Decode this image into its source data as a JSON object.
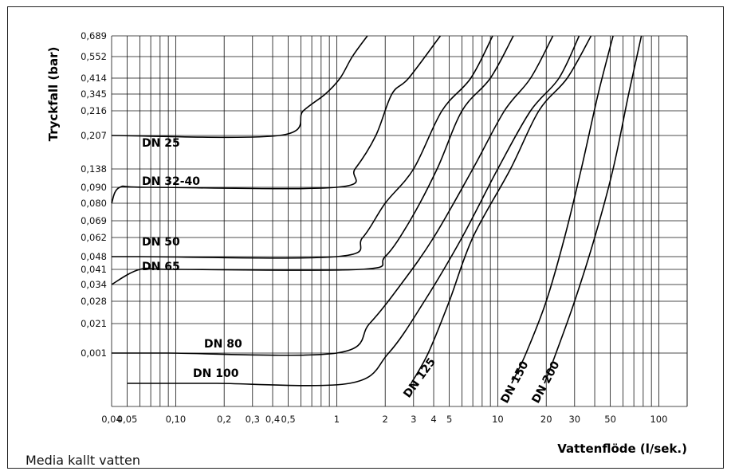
{
  "chart_data": {
    "type": "line",
    "title": "",
    "xlabel": "Vattenflöde (l/sek.)",
    "ylabel": "Tryckfall (bar)",
    "caption": "Media kallt vatten",
    "x_scale": "log",
    "xlim": [
      0.04,
      150
    ],
    "x_ticks": [
      {
        "v": 0.04,
        "label": "0,04"
      },
      {
        "v": 0.05,
        "label": "0,05"
      },
      {
        "v": 0.1,
        "label": "0,10"
      },
      {
        "v": 0.2,
        "label": "0,2"
      },
      {
        "v": 0.3,
        "label": "0,3"
      },
      {
        "v": 0.4,
        "label": "0,4"
      },
      {
        "v": 0.5,
        "label": "0,5"
      },
      {
        "v": 1,
        "label": "1"
      },
      {
        "v": 2,
        "label": "2"
      },
      {
        "v": 3,
        "label": "3"
      },
      {
        "v": 4,
        "label": "4"
      },
      {
        "v": 5,
        "label": "5"
      },
      {
        "v": 10,
        "label": "10"
      },
      {
        "v": 20,
        "label": "20"
      },
      {
        "v": 30,
        "label": "30"
      },
      {
        "v": 50,
        "label": "50"
      },
      {
        "v": 100,
        "label": "100"
      }
    ],
    "x_minor": [
      0.06,
      0.07,
      0.08,
      0.09,
      0.6,
      0.7,
      0.8,
      0.9,
      6,
      7,
      8,
      9,
      40,
      60,
      70,
      80,
      90,
      150
    ],
    "y_ticks": [
      "0,689",
      "0,552",
      "0,414",
      "0,345",
      "0,216",
      "0,207",
      "0,138",
      "0,090",
      "0,080",
      "0,069",
      "0,062",
      "0,048",
      "0,041",
      "0,034",
      "0,028",
      "0,021",
      "0,001",
      ""
    ],
    "grid": true,
    "series": [
      {
        "name": "DN 25",
        "points": [
          [
            0.04,
            0.207
          ],
          [
            0.44,
            0.207
          ],
          [
            0.62,
            0.216
          ],
          [
            0.85,
            0.345
          ],
          [
            1.05,
            0.414
          ],
          [
            1.25,
            0.552
          ],
          [
            1.55,
            0.689
          ]
        ]
      },
      {
        "name": "DN 32-40",
        "points": [
          [
            0.04,
            0.08
          ],
          [
            0.045,
            0.09
          ],
          [
            0.07,
            0.09
          ],
          [
            1.0,
            0.09
          ],
          [
            1.3,
            0.138
          ],
          [
            1.75,
            0.207
          ],
          [
            2.2,
            0.345
          ],
          [
            2.8,
            0.414
          ],
          [
            4.4,
            0.689
          ]
        ]
      },
      {
        "name": "DN 50",
        "points": [
          [
            0.04,
            0.048
          ],
          [
            0.06,
            0.048
          ],
          [
            1.0,
            0.048
          ],
          [
            1.45,
            0.062
          ],
          [
            2.0,
            0.08
          ],
          [
            3.0,
            0.138
          ],
          [
            4.5,
            0.216
          ],
          [
            6.8,
            0.414
          ],
          [
            9.3,
            0.689
          ]
        ]
      },
      {
        "name": "DN 65",
        "points": [
          [
            0.04,
            0.034
          ],
          [
            0.06,
            0.041
          ],
          [
            0.1,
            0.041
          ],
          [
            1.4,
            0.041
          ],
          [
            2.0,
            0.048
          ],
          [
            2.85,
            0.069
          ],
          [
            4.2,
            0.138
          ],
          [
            6.0,
            0.216
          ],
          [
            9.0,
            0.414
          ],
          [
            12.5,
            0.689
          ]
        ]
      },
      {
        "name": "DN 80",
        "points": [
          [
            0.04,
            0.001
          ],
          [
            0.06,
            0.001
          ],
          [
            0.09,
            0.001
          ],
          [
            1.0,
            0.001
          ],
          [
            1.6,
            0.021
          ],
          [
            2.5,
            0.034
          ],
          [
            4.0,
            0.062
          ],
          [
            7.0,
            0.138
          ],
          [
            11.0,
            0.216
          ],
          [
            16.0,
            0.414
          ],
          [
            22.0,
            0.689
          ]
        ]
      },
      {
        "name": "DN 100",
        "points": [
          [
            0.05,
            0
          ],
          [
            0.09,
            0
          ],
          [
            0.18,
            0
          ],
          [
            1.2,
            0
          ],
          [
            2.1,
            0.001
          ],
          [
            3.5,
            0.028
          ],
          [
            6.0,
            0.062
          ],
          [
            10.0,
            0.138
          ],
          [
            16.0,
            0.216
          ],
          [
            24.0,
            0.414
          ],
          [
            32.0,
            0.689
          ]
        ]
      },
      {
        "name": "DN 125",
        "points": [
          [
            2.9,
            0
          ],
          [
            3.7,
            0.001
          ],
          [
            5.0,
            0.028
          ],
          [
            7.0,
            0.062
          ],
          [
            12.0,
            0.138
          ],
          [
            18.0,
            0.216
          ],
          [
            27.0,
            0.414
          ],
          [
            38.0,
            0.689
          ]
        ]
      },
      {
        "name": "DN 150",
        "points": [
          [
            12.2,
            0
          ],
          [
            15.0,
            0.001
          ],
          [
            20.0,
            0.028
          ],
          [
            26.0,
            0.062
          ],
          [
            33.0,
            0.138
          ],
          [
            42.0,
            0.345
          ],
          [
            52.0,
            0.689
          ]
        ]
      },
      {
        "name": "DN 200",
        "points": [
          [
            19.5,
            0
          ],
          [
            23.0,
            0.001
          ],
          [
            30.0,
            0.028
          ],
          [
            40.0,
            0.062
          ],
          [
            52.0,
            0.138
          ],
          [
            65.0,
            0.345
          ],
          [
            78.0,
            0.689
          ]
        ]
      }
    ]
  }
}
